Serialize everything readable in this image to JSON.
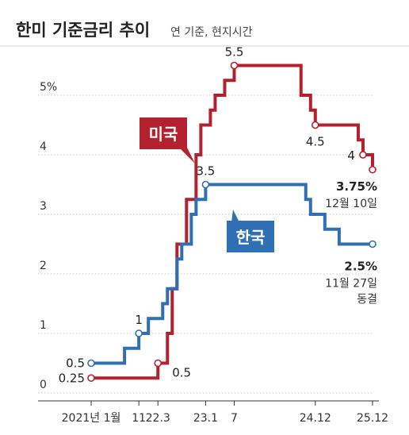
{
  "header": {
    "title": "한미 기준금리 추이",
    "subtitle": "연 기준, 현지시간"
  },
  "chart_data": {
    "type": "line",
    "step": true,
    "y_unit": "%",
    "ylim": [
      0,
      5.9
    ],
    "y_ticks": [
      {
        "value": 0,
        "label": "0"
      },
      {
        "value": 1,
        "label": "1"
      },
      {
        "value": 2,
        "label": "2"
      },
      {
        "value": 3,
        "label": "3"
      },
      {
        "value": 4,
        "label": "4"
      },
      {
        "value": 5,
        "label": "5%"
      }
    ],
    "x_range": [
      "2021-01",
      "2025-12"
    ],
    "x_ticks": [
      {
        "date": "2021-01",
        "label": "2021년 1월"
      },
      {
        "date": "2021-11",
        "label": "11"
      },
      {
        "date": "2022-03",
        "label": "22.3"
      },
      {
        "date": "2023-01",
        "label": "23.1"
      },
      {
        "date": "2023-07",
        "label": "7"
      },
      {
        "date": "2024-12",
        "label": "24.12"
      },
      {
        "date": "2025-12",
        "label": "25.12"
      }
    ],
    "grid": "horizontal",
    "series": [
      {
        "name": "미국",
        "color": "#b5202e",
        "points": [
          [
            "2021-01",
            0.25
          ],
          [
            "2022-03",
            0.5
          ],
          [
            "2022-05",
            1.0
          ],
          [
            "2022-06",
            1.75
          ],
          [
            "2022-07",
            2.5
          ],
          [
            "2022-09",
            3.25
          ],
          [
            "2022-11",
            4.0
          ],
          [
            "2022-12",
            4.5
          ],
          [
            "2023-02",
            4.75
          ],
          [
            "2023-03",
            5.0
          ],
          [
            "2023-05",
            5.25
          ],
          [
            "2023-07",
            5.5
          ],
          [
            "2024-09",
            5.0
          ],
          [
            "2024-11",
            4.75
          ],
          [
            "2024-12",
            4.5
          ],
          [
            "2025-09",
            4.25
          ],
          [
            "2025-10",
            4.0
          ],
          [
            "2025-12",
            3.75
          ]
        ],
        "markers": [
          {
            "date": "2021-01",
            "value": 0.25,
            "label": "0.25"
          },
          {
            "date": "2022-03",
            "value": 0.5,
            "label": "0.5"
          },
          {
            "date": "2023-07",
            "value": 5.5,
            "label": "5.5"
          },
          {
            "date": "2024-12",
            "value": 4.5,
            "label": "4.5"
          },
          {
            "date": "2025-10",
            "value": 4.0,
            "label": "4"
          },
          {
            "date": "2025-12",
            "value": 3.75,
            "label": "3.75%",
            "note": "12월 10일"
          }
        ]
      },
      {
        "name": "한국",
        "color": "#2f6fb4",
        "points": [
          [
            "2021-01",
            0.5
          ],
          [
            "2021-08",
            0.75
          ],
          [
            "2021-11",
            1.0
          ],
          [
            "2022-01",
            1.25
          ],
          [
            "2022-04",
            1.5
          ],
          [
            "2022-05",
            1.75
          ],
          [
            "2022-07",
            2.25
          ],
          [
            "2022-08",
            2.5
          ],
          [
            "2022-10",
            3.0
          ],
          [
            "2022-11",
            3.25
          ],
          [
            "2023-01",
            3.5
          ],
          [
            "2024-10",
            3.25
          ],
          [
            "2024-11",
            3.0
          ],
          [
            "2025-02",
            2.75
          ],
          [
            "2025-05",
            2.5
          ],
          [
            "2025-12",
            2.5
          ]
        ],
        "markers": [
          {
            "date": "2021-01",
            "value": 0.5,
            "label": "0.5"
          },
          {
            "date": "2021-11",
            "value": 1.0,
            "label": "1"
          },
          {
            "date": "2023-01",
            "value": 3.5,
            "label": "3.5"
          },
          {
            "date": "2025-12",
            "value": 2.5,
            "label": "2.5%",
            "note": "11월 27일",
            "note2": "동결"
          }
        ]
      }
    ]
  }
}
